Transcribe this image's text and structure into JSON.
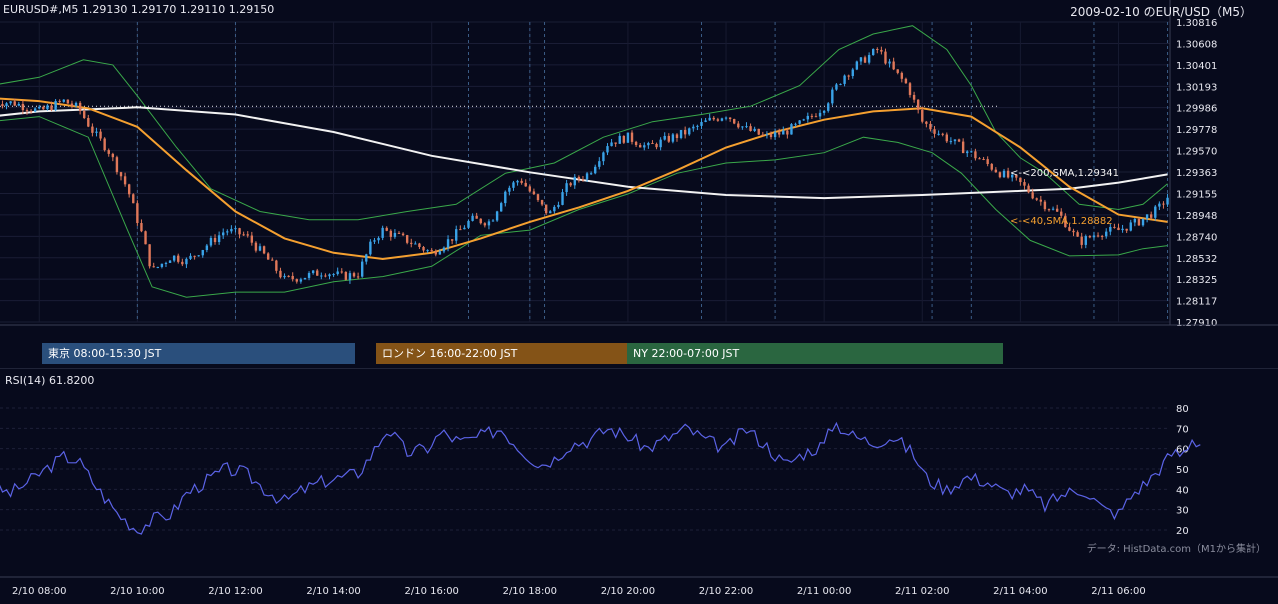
{
  "header": {
    "symbol_info": "EURUSD#,M5 1.29130 1.29170 1.29110 1.29150",
    "right_title": "2009-02-10 のEUR/USD（M5）"
  },
  "colors": {
    "background": "#070a1c",
    "bull": "#3aa3e8",
    "bear": "#e0785a",
    "sma40": "#f5a030",
    "sma200": "#f2f2f2",
    "bollinger": "#3aa84a",
    "rsi": "#5b63e6",
    "session_tokyo": "#2a4f7c",
    "session_london": "#845317",
    "session_ny": "#2a6640"
  },
  "sessions": [
    {
      "label": "東京 08:00-15:30 JST",
      "color": "#2a4f7c"
    },
    {
      "label": "ロンドン 16:00-22:00 JST",
      "color": "#845317"
    },
    {
      "label": "NY 22:00-07:00 JST",
      "color": "#2a6640"
    }
  ],
  "indicators": {
    "sma200_label": "<-<200,SMA,1.29341",
    "sma40_label": "<-<40,SMA,1.28882",
    "rsi_title": "RSI(14) 61.8200"
  },
  "footer": {
    "source": "データ: HistData.com（M1から集計）"
  },
  "chart_data": [
    {
      "type": "candlestick",
      "title": "EURUSD#,M5",
      "y_ticks": [
        "1.30816",
        "1.30608",
        "1.30401",
        "1.30193",
        "1.29986",
        "1.29778",
        "1.29570",
        "1.29363",
        "1.29155",
        "1.28948",
        "1.28740",
        "1.28532",
        "1.28325",
        "1.28117",
        "1.27910"
      ],
      "ylim": [
        1.2791,
        1.30816
      ],
      "x_ticks": [
        "8",
        "10",
        "12",
        "14",
        "16",
        "18",
        "20",
        "22",
        "0",
        "2",
        "4",
        "6"
      ],
      "x_range_hours": [
        7.2,
        31.05
      ],
      "dotted_reference_level": 1.3,
      "series": [
        {
          "name": "SMA 200",
          "last": 1.29341,
          "points": [
            [
              7.0,
              1.299
            ],
            [
              8.0,
              1.2995
            ],
            [
              10.0,
              1.2999
            ],
            [
              12.0,
              1.2992
            ],
            [
              14.0,
              1.2975
            ],
            [
              16.0,
              1.2952
            ],
            [
              18.0,
              1.2936
            ],
            [
              20.0,
              1.2922
            ],
            [
              22.0,
              1.2914
            ],
            [
              24.0,
              1.2911
            ],
            [
              26.0,
              1.2914
            ],
            [
              28.0,
              1.2918
            ],
            [
              29.0,
              1.292
            ],
            [
              30.0,
              1.2926
            ],
            [
              31.0,
              1.2934
            ]
          ]
        },
        {
          "name": "SMA 40",
          "last": 1.28882,
          "points": [
            [
              7.0,
              1.3008
            ],
            [
              8.0,
              1.3005
            ],
            [
              9.0,
              1.2998
            ],
            [
              10.0,
              1.298
            ],
            [
              11.0,
              1.2938
            ],
            [
              12.0,
              1.2898
            ],
            [
              13.0,
              1.2872
            ],
            [
              14.0,
              1.2858
            ],
            [
              15.0,
              1.2852
            ],
            [
              16.0,
              1.2858
            ],
            [
              17.0,
              1.2872
            ],
            [
              18.0,
              1.2888
            ],
            [
              19.0,
              1.2902
            ],
            [
              20.0,
              1.2918
            ],
            [
              21.0,
              1.2938
            ],
            [
              22.0,
              1.296
            ],
            [
              23.0,
              1.2975
            ],
            [
              24.0,
              1.2987
            ],
            [
              25.0,
              1.2995
            ],
            [
              26.0,
              1.2998
            ],
            [
              27.0,
              1.299
            ],
            [
              28.0,
              1.296
            ],
            [
              29.0,
              1.2922
            ],
            [
              30.0,
              1.2895
            ],
            [
              31.0,
              1.2888
            ]
          ]
        },
        {
          "name": "Bollinger Upper",
          "points": [
            [
              7.0,
              1.302
            ],
            [
              8.0,
              1.3028
            ],
            [
              8.9,
              1.3045
            ],
            [
              9.5,
              1.304
            ],
            [
              10.0,
              1.301
            ],
            [
              10.8,
              1.296
            ],
            [
              11.5,
              1.292
            ],
            [
              12.5,
              1.2898
            ],
            [
              13.5,
              1.289
            ],
            [
              14.5,
              1.289
            ],
            [
              15.5,
              1.2898
            ],
            [
              16.5,
              1.2905
            ],
            [
              17.5,
              1.2935
            ],
            [
              18.5,
              1.2945
            ],
            [
              19.5,
              1.297
            ],
            [
              20.5,
              1.2985
            ],
            [
              21.5,
              1.2992
            ],
            [
              22.5,
              1.3
            ],
            [
              23.5,
              1.302
            ],
            [
              24.3,
              1.3055
            ],
            [
              25.0,
              1.307
            ],
            [
              25.8,
              1.3078
            ],
            [
              26.5,
              1.3055
            ],
            [
              27.0,
              1.302
            ],
            [
              27.5,
              1.2975
            ],
            [
              28.0,
              1.295
            ],
            [
              28.5,
              1.2935
            ],
            [
              29.2,
              1.2905
            ],
            [
              30.0,
              1.29
            ],
            [
              30.5,
              1.2905
            ],
            [
              31.0,
              1.2925
            ]
          ]
        },
        {
          "name": "Bollinger Lower",
          "points": [
            [
              7.0,
              1.2985
            ],
            [
              8.0,
              1.299
            ],
            [
              9.0,
              1.297
            ],
            [
              9.8,
              1.288
            ],
            [
              10.3,
              1.2825
            ],
            [
              11.0,
              1.2815
            ],
            [
              12.0,
              1.282
            ],
            [
              13.0,
              1.282
            ],
            [
              14.0,
              1.283
            ],
            [
              15.0,
              1.2835
            ],
            [
              16.0,
              1.2845
            ],
            [
              17.0,
              1.2875
            ],
            [
              18.0,
              1.288
            ],
            [
              19.0,
              1.29
            ],
            [
              20.0,
              1.2915
            ],
            [
              21.0,
              1.2935
            ],
            [
              22.0,
              1.2945
            ],
            [
              23.0,
              1.2948
            ],
            [
              24.0,
              1.2955
            ],
            [
              24.8,
              1.297
            ],
            [
              25.5,
              1.2965
            ],
            [
              26.2,
              1.2955
            ],
            [
              26.8,
              1.2935
            ],
            [
              27.5,
              1.29
            ],
            [
              28.2,
              1.287
            ],
            [
              29.0,
              1.2855
            ],
            [
              30.0,
              1.2856
            ],
            [
              30.5,
              1.2862
            ],
            [
              31.0,
              1.2865
            ]
          ]
        },
        {
          "name": "Price",
          "points": [
            [
              7.0,
              1.3005
            ],
            [
              7.5,
              1.3003
            ],
            [
              8.0,
              1.2995
            ],
            [
              8.5,
              1.3005
            ],
            [
              8.8,
              1.2998
            ],
            [
              9.1,
              1.2975
            ],
            [
              9.4,
              1.2958
            ],
            [
              9.8,
              1.292
            ],
            [
              10.1,
              1.2875
            ],
            [
              10.3,
              1.284
            ],
            [
              10.7,
              1.2855
            ],
            [
              11.0,
              1.285
            ],
            [
              11.4,
              1.2865
            ],
            [
              11.8,
              1.288
            ],
            [
              12.2,
              1.2875
            ],
            [
              12.6,
              1.2855
            ],
            [
              13.0,
              1.2832
            ],
            [
              13.4,
              1.2835
            ],
            [
              13.8,
              1.284
            ],
            [
              14.2,
              1.2835
            ],
            [
              14.5,
              1.2838
            ],
            [
              14.8,
              1.287
            ],
            [
              15.0,
              1.288
            ],
            [
              15.5,
              1.287
            ],
            [
              16.0,
              1.2858
            ],
            [
              16.4,
              1.2872
            ],
            [
              16.8,
              1.289
            ],
            [
              17.2,
              1.2888
            ],
            [
              17.5,
              1.2918
            ],
            [
              17.8,
              1.293
            ],
            [
              18.2,
              1.2905
            ],
            [
              18.4,
              1.2895
            ],
            [
              18.8,
              1.2925
            ],
            [
              19.2,
              1.2935
            ],
            [
              19.6,
              1.2965
            ],
            [
              20.0,
              1.297
            ],
            [
              20.4,
              1.296
            ],
            [
              20.8,
              1.2968
            ],
            [
              21.2,
              1.2975
            ],
            [
              21.6,
              1.2985
            ],
            [
              22.0,
              1.2992
            ],
            [
              22.4,
              1.2978
            ],
            [
              22.8,
              1.297
            ],
            [
              23.2,
              1.2975
            ],
            [
              23.6,
              1.2985
            ],
            [
              24.0,
              1.3
            ],
            [
              24.4,
              1.303
            ],
            [
              24.8,
              1.3045
            ],
            [
              25.1,
              1.3055
            ],
            [
              25.4,
              1.3035
            ],
            [
              25.7,
              1.302
            ],
            [
              26.0,
              1.2985
            ],
            [
              26.4,
              1.2972
            ],
            [
              26.8,
              1.296
            ],
            [
              27.2,
              1.2948
            ],
            [
              27.6,
              1.2935
            ],
            [
              28.0,
              1.2925
            ],
            [
              28.4,
              1.2908
            ],
            [
              28.8,
              1.2895
            ],
            [
              29.2,
              1.2868
            ],
            [
              29.6,
              1.2878
            ],
            [
              30.0,
              1.288
            ],
            [
              30.4,
              1.2888
            ],
            [
              30.8,
              1.29
            ],
            [
              31.0,
              1.2912
            ]
          ]
        }
      ]
    },
    {
      "type": "line",
      "title": "RSI(14) 61.8200",
      "y_ticks": [
        "80",
        "70",
        "60",
        "50",
        "40",
        "30",
        "20"
      ],
      "ylim": [
        18,
        82
      ],
      "x_tick_labels": [
        "2/10 08:00",
        "2/10 10:00",
        "2/10 12:00",
        "2/10 14:00",
        "2/10 16:00",
        "2/10 18:00",
        "2/10 20:00",
        "2/10 22:00",
        "2/11 00:00",
        "2/11 02:00",
        "2/11 04:00",
        "2/11 06:00"
      ],
      "series": [
        {
          "name": "RSI(14)",
          "last": 61.82,
          "points": [
            [
              7.0,
              42
            ],
            [
              7.4,
              38
            ],
            [
              7.8,
              44
            ],
            [
              8.2,
              51
            ],
            [
              8.5,
              56
            ],
            [
              8.8,
              54
            ],
            [
              9.2,
              40
            ],
            [
              9.6,
              28
            ],
            [
              10.0,
              20
            ],
            [
              10.3,
              25
            ],
            [
              10.7,
              28
            ],
            [
              11.0,
              38
            ],
            [
              11.4,
              44
            ],
            [
              11.8,
              50
            ],
            [
              12.2,
              48
            ],
            [
              12.6,
              40
            ],
            [
              13.0,
              34
            ],
            [
              13.4,
              40
            ],
            [
              13.8,
              44
            ],
            [
              14.2,
              46
            ],
            [
              14.5,
              48
            ],
            [
              14.8,
              58
            ],
            [
              15.1,
              70
            ],
            [
              15.5,
              58
            ],
            [
              15.9,
              60
            ],
            [
              16.2,
              68
            ],
            [
              16.6,
              63
            ],
            [
              17.0,
              66
            ],
            [
              17.4,
              70
            ],
            [
              17.8,
              60
            ],
            [
              18.2,
              52
            ],
            [
              18.5,
              55
            ],
            [
              18.8,
              62
            ],
            [
              19.2,
              64
            ],
            [
              19.6,
              70
            ],
            [
              20.0,
              66
            ],
            [
              20.4,
              60
            ],
            [
              20.8,
              65
            ],
            [
              21.2,
              70
            ],
            [
              21.6,
              64
            ],
            [
              22.0,
              60
            ],
            [
              22.4,
              70
            ],
            [
              22.8,
              62
            ],
            [
              23.2,
              52
            ],
            [
              23.6,
              58
            ],
            [
              24.0,
              62
            ],
            [
              24.2,
              73
            ],
            [
              24.6,
              66
            ],
            [
              25.0,
              63
            ],
            [
              25.4,
              66
            ],
            [
              25.8,
              58
            ],
            [
              26.1,
              45
            ],
            [
              26.5,
              40
            ],
            [
              26.9,
              46
            ],
            [
              27.3,
              44
            ],
            [
              27.7,
              38
            ],
            [
              28.1,
              40
            ],
            [
              28.5,
              32
            ],
            [
              28.9,
              38
            ],
            [
              29.3,
              40
            ],
            [
              29.7,
              30
            ],
            [
              30.0,
              28
            ],
            [
              30.3,
              38
            ],
            [
              30.6,
              44
            ],
            [
              30.9,
              52
            ],
            [
              31.1,
              58
            ],
            [
              31.3,
              57
            ],
            [
              31.5,
              65
            ],
            [
              31.7,
              62
            ]
          ]
        }
      ]
    }
  ]
}
